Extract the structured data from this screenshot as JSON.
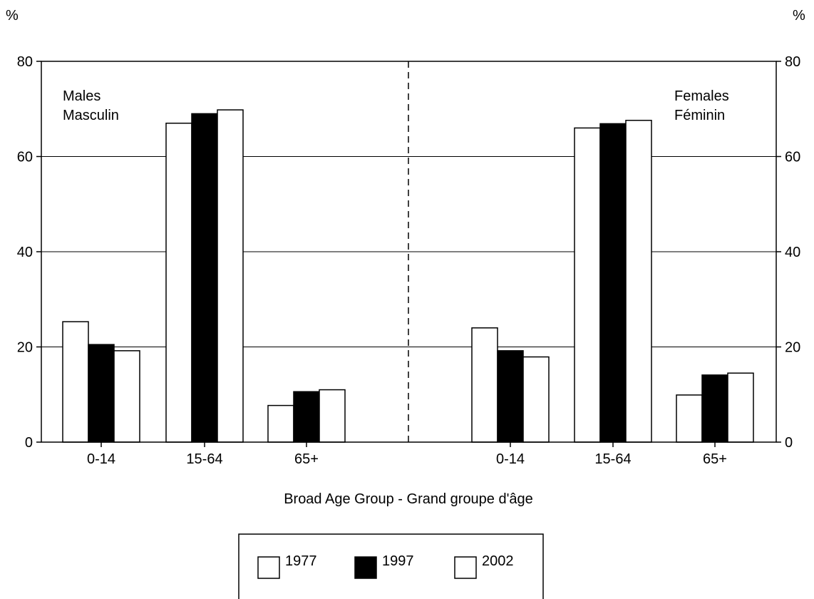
{
  "chart_data": {
    "type": "bar",
    "yunit_left": "%",
    "yunit_right": "%",
    "ylim": [
      0,
      80
    ],
    "yticks": [
      0,
      20,
      40,
      60,
      80
    ],
    "grid": true,
    "xlabel": "Broad Age Group - Grand groupe d'âge",
    "legend_placement": "bottom-center",
    "panels": [
      {
        "label_lines": [
          "Males",
          "Masculin"
        ],
        "label_position": "top-left",
        "categories": [
          "0-14",
          "15-64",
          "65+"
        ],
        "series": [
          {
            "name": "1977",
            "values": [
              25.3,
              67.0,
              7.7
            ]
          },
          {
            "name": "1997",
            "values": [
              20.5,
              69.0,
              10.6
            ]
          },
          {
            "name": "2002",
            "values": [
              19.2,
              69.8,
              11.0
            ]
          }
        ]
      },
      {
        "label_lines": [
          "Females",
          "Féminin"
        ],
        "label_position": "top-right",
        "categories": [
          "0-14",
          "15-64",
          "65+"
        ],
        "series": [
          {
            "name": "1977",
            "values": [
              24.0,
              66.0,
              9.9
            ]
          },
          {
            "name": "1997",
            "values": [
              19.2,
              66.9,
              14.1
            ]
          },
          {
            "name": "2002",
            "values": [
              17.9,
              67.6,
              14.5
            ]
          }
        ]
      }
    ],
    "legend": [
      {
        "name": "1977",
        "color": "#ffffff"
      },
      {
        "name": "1997",
        "color": "#000000"
      },
      {
        "name": "2002",
        "color": "#ffffff"
      }
    ]
  }
}
